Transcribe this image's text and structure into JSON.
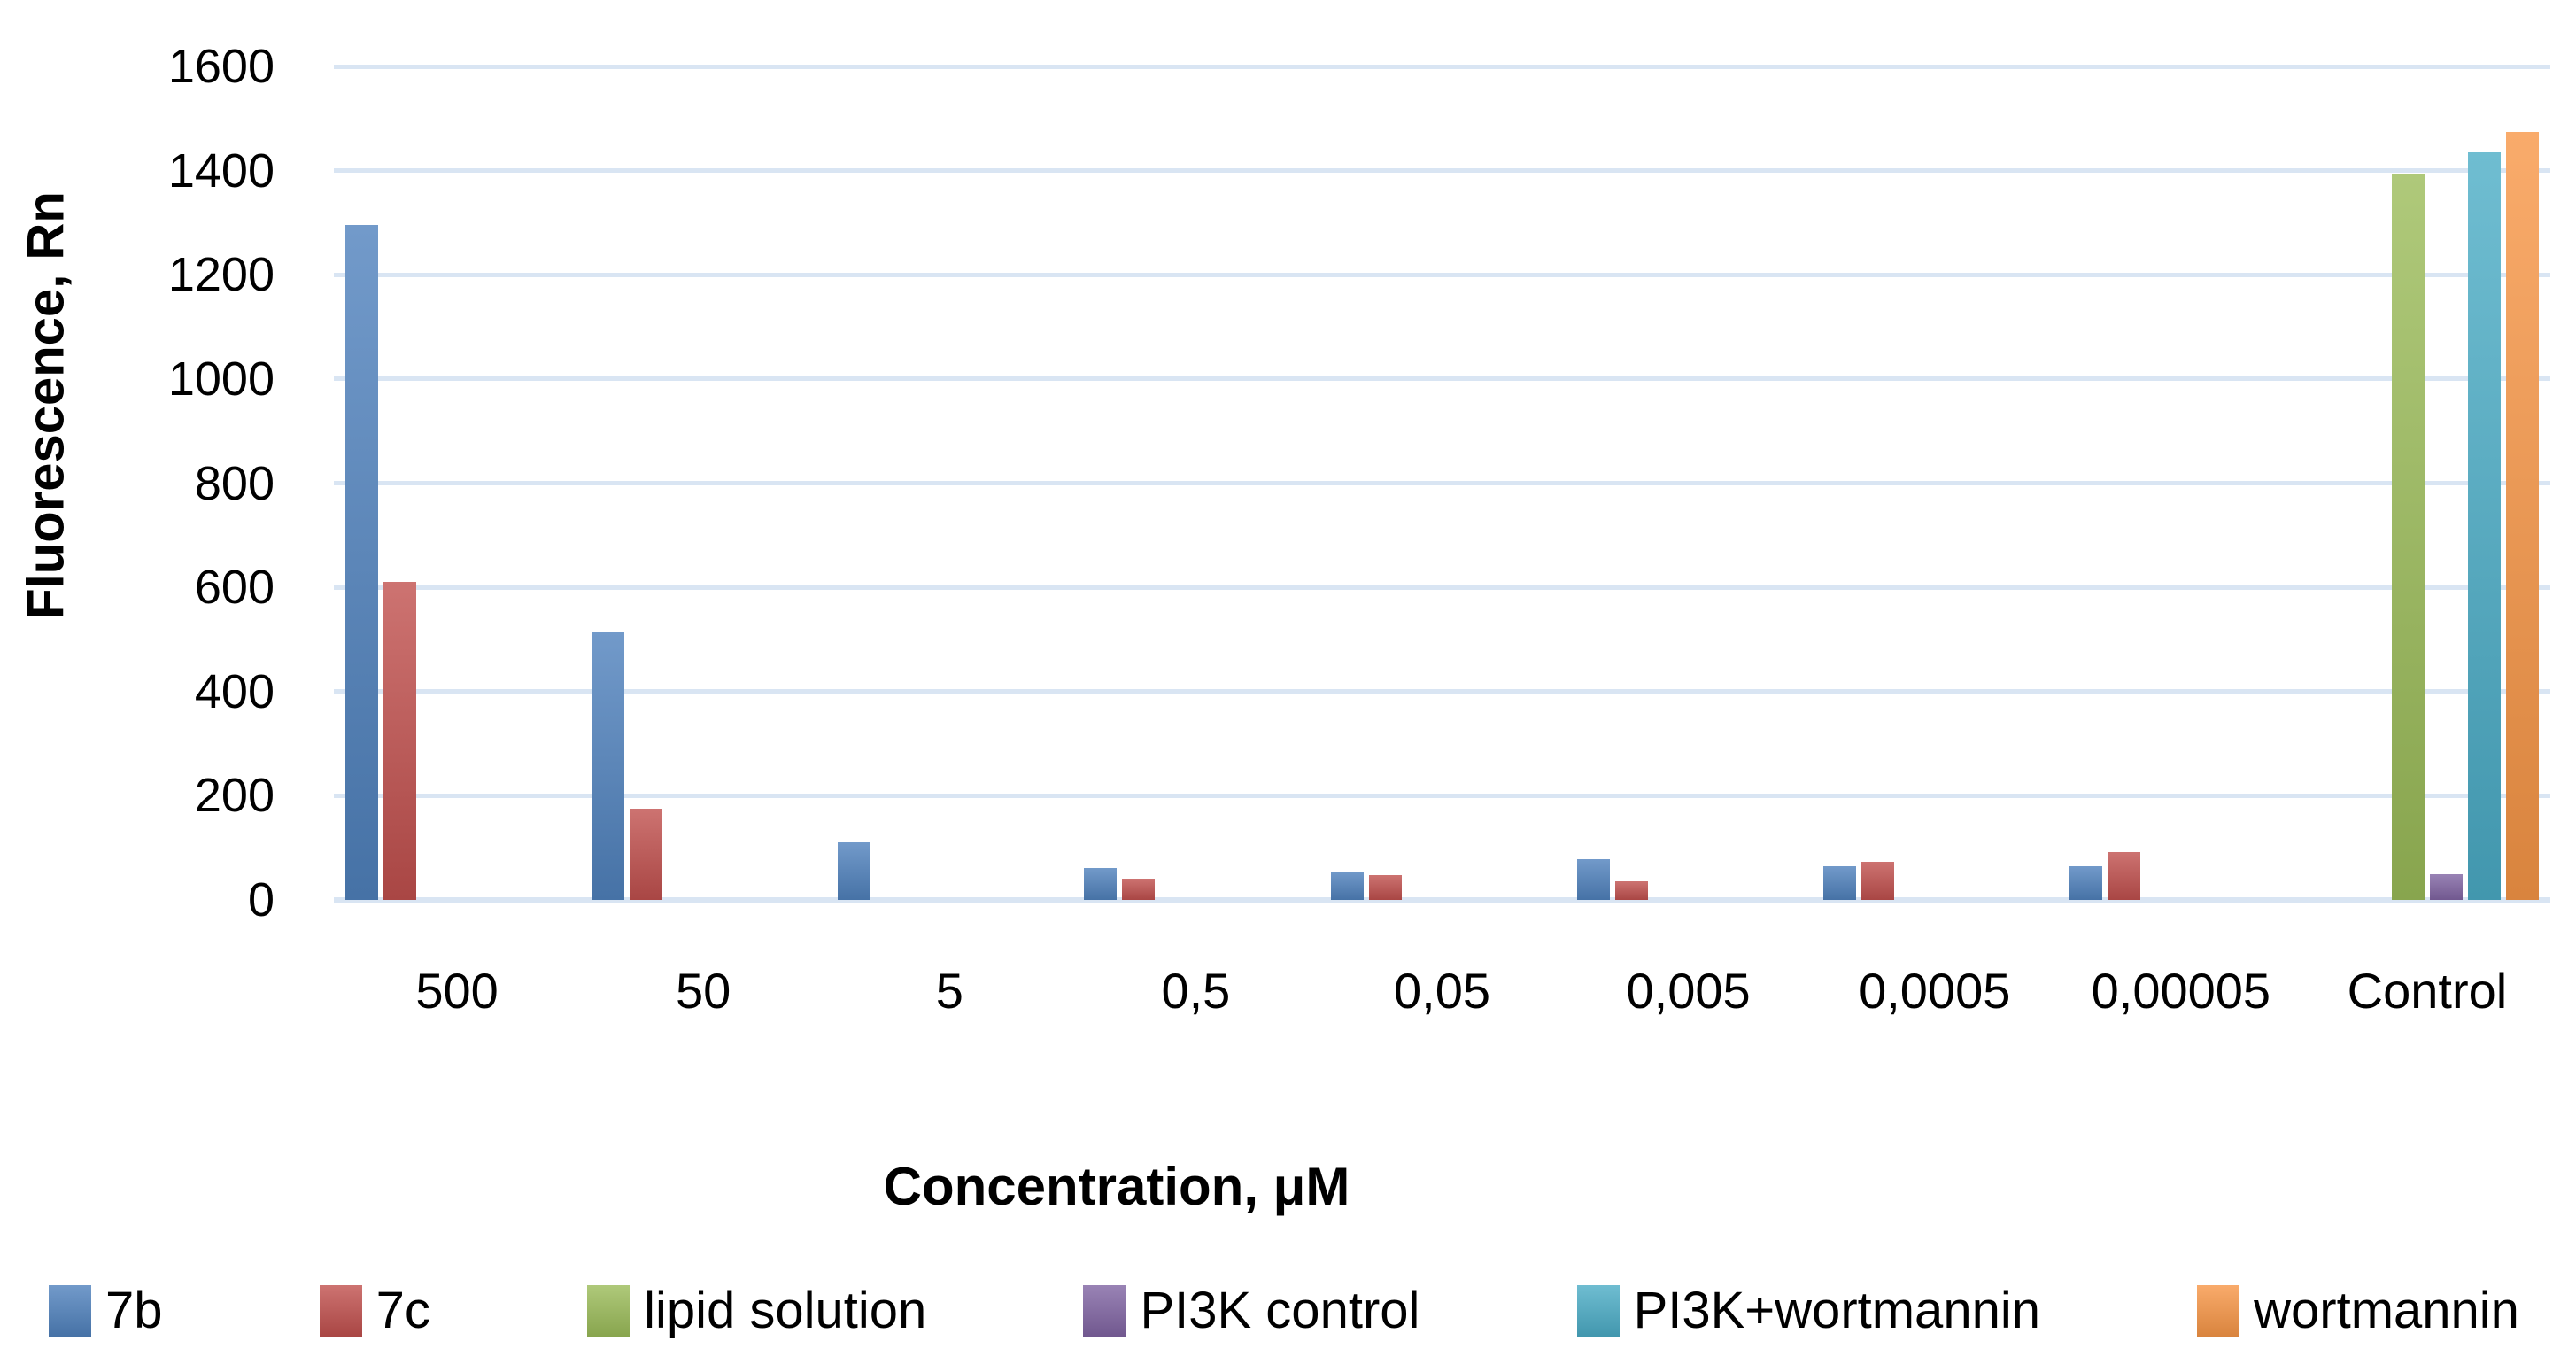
{
  "chart_data": {
    "type": "bar",
    "title": "",
    "xlabel": "Concentration, μM",
    "ylabel": "Fluorescence, Rn",
    "categories": [
      "500",
      "50",
      "5",
      "0,5",
      "0,05",
      "0,005",
      "0,0005",
      "0,00005",
      "Control"
    ],
    "series": [
      {
        "name": "7b",
        "color": "#4F81BD",
        "values": [
          1295,
          515,
          110,
          62,
          55,
          78,
          64,
          64,
          null
        ]
      },
      {
        "name": "7c",
        "color": "#C0504D",
        "values": [
          610,
          175,
          null,
          40,
          48,
          35,
          73,
          92,
          null
        ]
      },
      {
        "name": "lipid solution",
        "color": "#9BBB59",
        "values": [
          null,
          null,
          null,
          null,
          null,
          null,
          null,
          null,
          1395
        ]
      },
      {
        "name": "PI3K control",
        "color": "#8064A2",
        "values": [
          null,
          null,
          null,
          null,
          null,
          null,
          null,
          null,
          50
        ]
      },
      {
        "name": "PI3K+wortmannin",
        "color": "#4BACC6",
        "values": [
          null,
          null,
          null,
          null,
          null,
          null,
          null,
          null,
          1435
        ]
      },
      {
        "name": "wortmannin",
        "color": "#F79646",
        "values": [
          null,
          null,
          null,
          null,
          null,
          null,
          null,
          null,
          1475
        ]
      }
    ],
    "ylim": [
      0,
      1600
    ],
    "ytick_step": 200,
    "yticks": [
      "0",
      "200",
      "400",
      "600",
      "800",
      "1000",
      "1200",
      "1400",
      "1600"
    ],
    "grid": true,
    "gridline_color": "#D9E5F3",
    "legend_position": "bottom",
    "background_color": "#FFFFFF",
    "text_color": "#000000"
  }
}
